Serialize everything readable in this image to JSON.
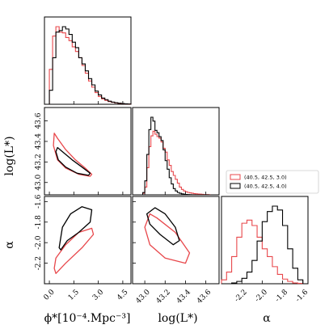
{
  "colors": {
    "red": "#e8474b",
    "black": "#000000"
  },
  "chart_data": {
    "type": "corner",
    "parameters": [
      "phi",
      "logL",
      "alpha"
    ],
    "axis_labels": {
      "phi": "ϕ*[10⁻⁴.Mpc⁻³]",
      "logL": "log(L*)",
      "alpha": "α"
    },
    "ranges": {
      "phi": [
        -0.3,
        5.0
      ],
      "logL": [
        42.88,
        43.73
      ],
      "alpha": [
        -2.4,
        -1.55
      ]
    },
    "ticks": {
      "phi": [
        "0.0",
        "1.5",
        "3.0",
        "4.5"
      ],
      "logL": [
        "43.0",
        "43.2",
        "43.4",
        "43.6"
      ],
      "alpha": [
        "-2.2",
        "-2.0",
        "-1.8",
        "-1.6"
      ]
    },
    "legend": {
      "placement": "right",
      "entries": [
        {
          "label": "(40.5, 42.5, 3.0)",
          "color": "#e8474b"
        },
        {
          "label": "(40.5, 42.5, 4.0)",
          "color": "#000000"
        }
      ]
    },
    "histograms": {
      "phi": {
        "edges": [
          0.0,
          0.2,
          0.4,
          0.6,
          0.8,
          1.0,
          1.2,
          1.4,
          1.6,
          1.8,
          2.0,
          2.2,
          2.4,
          2.6,
          2.8,
          3.0,
          3.2,
          3.4,
          3.6,
          3.8,
          4.0,
          4.2,
          4.4,
          4.6,
          4.8,
          5.0
        ],
        "series": [
          {
            "name": "(40.5, 42.5, 3.0)",
            "values": [
              0.45,
              0.88,
              1.0,
              0.93,
              0.92,
              0.86,
              0.82,
              0.74,
              0.68,
              0.6,
              0.5,
              0.4,
              0.3,
              0.22,
              0.15,
              0.1,
              0.07,
              0.05,
              0.035,
              0.025,
              0.018,
              0.012,
              0.008,
              0.005,
              0.003
            ]
          },
          {
            "name": "(40.5, 42.5, 4.0)",
            "values": [
              0.18,
              0.6,
              0.93,
              0.95,
              1.0,
              0.97,
              0.9,
              0.8,
              0.73,
              0.6,
              0.52,
              0.43,
              0.33,
              0.25,
              0.17,
              0.12,
              0.08,
              0.06,
              0.04,
              0.028,
              0.02,
              0.014,
              0.01,
              0.006,
              0.003
            ]
          }
        ]
      },
      "logL": {
        "edges": [
          42.98,
          43.0,
          43.02,
          43.04,
          43.06,
          43.08,
          43.1,
          43.12,
          43.14,
          43.16,
          43.18,
          43.2,
          43.22,
          43.24,
          43.26,
          43.28,
          43.3,
          43.32,
          43.34,
          43.36,
          43.38,
          43.4,
          43.42,
          43.44,
          43.46,
          43.48,
          43.5,
          43.52,
          43.54,
          43.56,
          43.58,
          43.6,
          43.62,
          43.64
        ],
        "series": [
          {
            "name": "(40.5, 42.5, 3.0)",
            "values": [
              0.02,
              0.1,
              0.35,
              0.62,
              0.76,
              0.82,
              0.78,
              0.75,
              0.73,
              0.68,
              0.6,
              0.55,
              0.45,
              0.38,
              0.3,
              0.25,
              0.2,
              0.15,
              0.1,
              0.07,
              0.05,
              0.04,
              0.03,
              0.025,
              0.02,
              0.015,
              0.012,
              0.01,
              0.008,
              0.006,
              0.004,
              0.003,
              0.002
            ]
          },
          {
            "name": "(40.5, 42.5, 4.0)",
            "values": [
              0.03,
              0.18,
              0.52,
              0.84,
              1.0,
              0.95,
              0.83,
              0.8,
              0.75,
              0.7,
              0.58,
              0.44,
              0.33,
              0.22,
              0.14,
              0.08,
              0.05,
              0.03,
              0.02,
              0.012,
              0.008,
              0.005,
              0.003,
              0.002,
              0.001,
              0.001,
              0.0,
              0.0,
              0.0,
              0.0,
              0.0,
              0.0,
              0.0
            ]
          }
        ]
      },
      "alpha": {
        "edges": [
          -2.4,
          -2.35,
          -2.3,
          -2.25,
          -2.2,
          -2.15,
          -2.1,
          -2.05,
          -2.0,
          -1.95,
          -1.9,
          -1.85,
          -1.8,
          -1.75,
          -1.7,
          -1.65,
          -1.6
        ],
        "series": [
          {
            "name": "(40.5, 42.5, 3.0)",
            "values": [
              0.05,
              0.15,
              0.35,
              0.6,
              0.78,
              0.82,
              0.75,
              0.6,
              0.45,
              0.35,
              0.22,
              0.12,
              0.06,
              0.03,
              0.01,
              0.005
            ]
          },
          {
            "name": "(40.5, 42.5, 4.0)",
            "values": [
              0.0,
              0.0,
              0.01,
              0.03,
              0.07,
              0.15,
              0.3,
              0.55,
              0.8,
              0.93,
              1.0,
              0.95,
              0.75,
              0.45,
              0.2,
              0.05
            ]
          }
        ]
      }
    },
    "contours": {
      "phi_logL": [
        {
          "name": "(40.5, 42.5, 3.0)",
          "points": [
            [
              0.3,
              43.48
            ],
            [
              0.5,
              43.43
            ],
            [
              1.0,
              43.32
            ],
            [
              1.6,
              43.22
            ],
            [
              2.2,
              43.14
            ],
            [
              2.6,
              43.08
            ],
            [
              2.5,
              43.06
            ],
            [
              1.8,
              43.08
            ],
            [
              1.0,
              43.14
            ],
            [
              0.5,
              43.22
            ],
            [
              0.25,
              43.36
            ]
          ]
        },
        {
          "name": "(40.5, 42.5, 4.0)",
          "points": [
            [
              0.5,
              43.34
            ],
            [
              0.8,
              43.3
            ],
            [
              1.4,
              43.22
            ],
            [
              2.0,
              43.15
            ],
            [
              2.5,
              43.09
            ],
            [
              2.4,
              43.07
            ],
            [
              1.7,
              43.09
            ],
            [
              1.0,
              43.15
            ],
            [
              0.55,
              43.22
            ],
            [
              0.4,
              43.3
            ]
          ]
        }
      ],
      "phi_alpha": [
        {
          "name": "(40.5, 42.5, 3.0)",
          "points": [
            [
              0.4,
              -2.3
            ],
            [
              1.0,
              -2.2
            ],
            [
              2.0,
              -2.05
            ],
            [
              2.7,
              -1.92
            ],
            [
              2.6,
              -1.86
            ],
            [
              1.8,
              -1.9
            ],
            [
              1.0,
              -2.02
            ],
            [
              0.4,
              -2.15
            ],
            [
              0.3,
              -2.25
            ]
          ]
        },
        {
          "name": "(40.5, 42.5, 4.0)",
          "points": [
            [
              0.6,
              -2.05
            ],
            [
              0.8,
              -1.85
            ],
            [
              1.3,
              -1.72
            ],
            [
              2.0,
              -1.65
            ],
            [
              2.6,
              -1.68
            ],
            [
              2.5,
              -1.8
            ],
            [
              1.8,
              -1.9
            ],
            [
              1.1,
              -1.98
            ],
            [
              0.7,
              -2.07
            ]
          ]
        }
      ],
      "logL_alpha": [
        {
          "name": "(40.5, 42.5, 3.0)",
          "points": [
            [
              43.05,
              -1.72
            ],
            [
              43.12,
              -1.76
            ],
            [
              43.3,
              -1.9
            ],
            [
              43.44,
              -2.1
            ],
            [
              43.4,
              -2.2
            ],
            [
              43.2,
              -2.15
            ],
            [
              43.05,
              -2.02
            ],
            [
              43.0,
              -1.85
            ]
          ]
        },
        {
          "name": "(40.5, 42.5, 4.0)",
          "points": [
            [
              43.02,
              -1.72
            ],
            [
              43.1,
              -1.66
            ],
            [
              43.2,
              -1.72
            ],
            [
              43.3,
              -1.85
            ],
            [
              43.34,
              -1.98
            ],
            [
              43.28,
              -2.02
            ],
            [
              43.15,
              -1.92
            ],
            [
              43.05,
              -1.82
            ]
          ]
        }
      ]
    }
  }
}
